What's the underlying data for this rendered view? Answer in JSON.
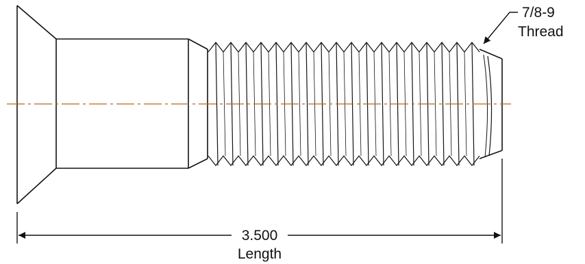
{
  "thread_callout": {
    "size": "7/8-9",
    "label": "Thread"
  },
  "length_dimension": {
    "value": "3.500",
    "label": "Length"
  },
  "colors": {
    "outline": "#111111",
    "centerline": "#b5651d",
    "background": "#ffffff"
  }
}
